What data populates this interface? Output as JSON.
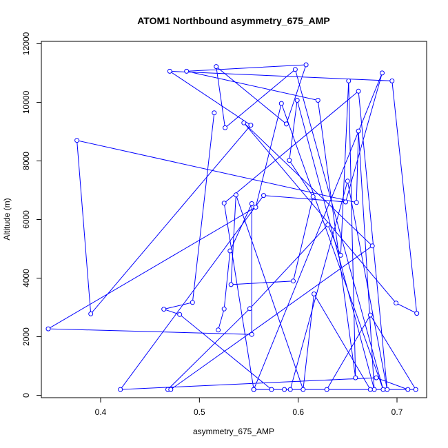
{
  "chart_data": {
    "type": "line",
    "title": "ATOM1 Northbound asymmetry_675_AMP",
    "xlabel": "asymmetry_675_AMP",
    "ylabel": "Altitude (m)",
    "xlim": [
      0.34,
      0.73
    ],
    "ylim": [
      -80,
      12080
    ],
    "xticks": [
      "0.4",
      "0.5",
      "0.6",
      "0.7"
    ],
    "yticks": [
      "0",
      "2000",
      "4000",
      "6000",
      "8000",
      "10000",
      "12000"
    ],
    "grid": false,
    "legend": "none",
    "series_color": "#0000ff",
    "x": [
      0.519,
      0.525,
      0.531,
      0.553,
      0.553,
      0.347,
      0.557,
      0.583,
      0.686,
      0.597,
      0.526,
      0.517,
      0.588,
      0.608,
      0.487,
      0.62,
      0.658,
      0.651,
      0.643,
      0.63,
      0.551,
      0.468,
      0.471,
      0.675,
      0.545,
      0.699,
      0.72,
      0.695,
      0.47,
      0.552,
      0.39,
      0.376,
      0.659,
      0.661,
      0.677,
      0.599,
      0.591,
      0.615,
      0.595,
      0.532,
      0.537,
      0.605,
      0.616,
      0.673,
      0.719,
      0.673,
      0.629,
      0.555,
      0.586,
      0.711,
      0.679,
      0.42,
      0.565,
      0.648,
      0.685,
      0.555,
      0.525,
      0.661,
      0.69,
      0.65,
      0.592,
      0.573,
      0.48,
      0.464,
      0.493,
      0.515
    ],
    "y": [
      2230,
      2950,
      4930,
      6540,
      2080,
      2270,
      6420,
      9960,
      200,
      11120,
      9130,
      11220,
      9260,
      11280,
      11060,
      10070,
      600,
      10730,
      4780,
      5820,
      2960,
      200,
      200,
      5100,
      9300,
      3150,
      2800,
      10730,
      11060,
      9220,
      2780,
      8700,
      6580,
      9020,
      200,
      10070,
      8020,
      6780,
      3900,
      3780,
      6840,
      200,
      3460,
      200,
      200,
      2740,
      200,
      200,
      200,
      200,
      600,
      200,
      6820,
      6600,
      11000,
      200,
      6560,
      10380,
      200,
      7310,
      200,
      200,
      2760,
      2940,
      3170,
      9640
    ]
  }
}
